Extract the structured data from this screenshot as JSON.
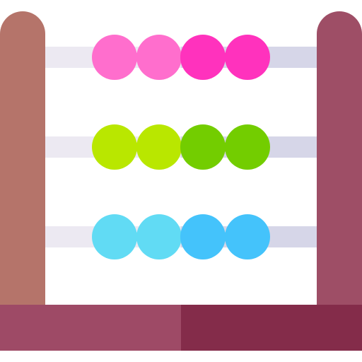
{
  "illustration": {
    "name": "abacus",
    "icon": "abacus-icon",
    "rows": [
      {
        "name": "top-row",
        "beads": [
          "#ff6ecd",
          "#ff6ecd",
          "#ff32bd",
          "#ff32bd"
        ],
        "rod_light": "#ece9f2",
        "rod_dark": "#d6d6e8"
      },
      {
        "name": "middle-row",
        "beads": [
          "#b9e700",
          "#b9e700",
          "#73cd00",
          "#73cd00"
        ],
        "rod_light": "#ece9f2",
        "rod_dark": "#d6d6e8"
      },
      {
        "name": "bottom-row",
        "beads": [
          "#61dbf4",
          "#61dbf4",
          "#44c3fb",
          "#44c3fb"
        ],
        "rod_light": "#ece9f2",
        "rod_dark": "#d6d6e8"
      }
    ],
    "colors": {
      "left_post": "#b5746a",
      "right_post": "#9e4e66",
      "base_left": "#9e4a66",
      "base_right": "#842c4a",
      "background": "#ffffff"
    }
  }
}
